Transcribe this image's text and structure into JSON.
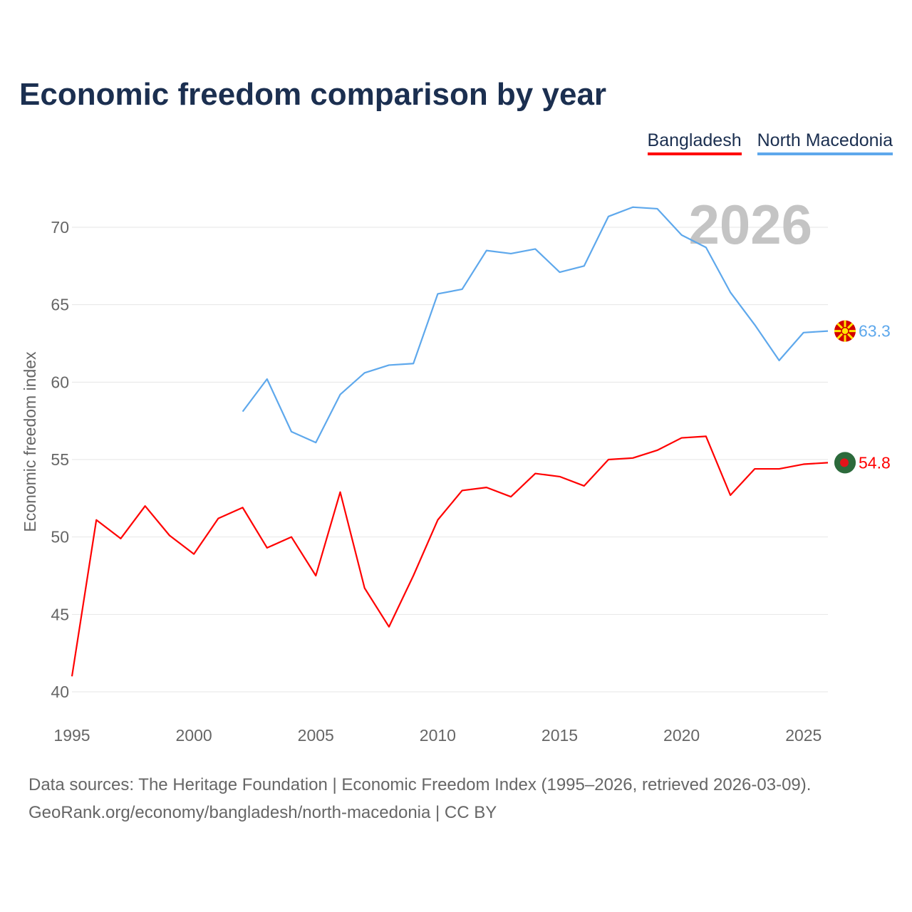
{
  "chart_data": {
    "type": "line",
    "title": "Economic freedom comparison by year",
    "xlabel": "",
    "ylabel": "Economic freedom index",
    "xlim": [
      1995,
      2026
    ],
    "ylim": [
      40,
      72
    ],
    "yticks": [
      40,
      45,
      50,
      55,
      60,
      65,
      70
    ],
    "xticks": [
      1995,
      2000,
      2005,
      2010,
      2015,
      2020,
      2025
    ],
    "grid": true,
    "legend_position": "top-right",
    "watermark_year": "2026",
    "series": [
      {
        "name": "Bangladesh",
        "color": "#ff0000",
        "end_label": "54.8",
        "x": [
          1995,
          1996,
          1997,
          1998,
          1999,
          2000,
          2001,
          2002,
          2003,
          2004,
          2005,
          2006,
          2007,
          2008,
          2009,
          2010,
          2011,
          2012,
          2013,
          2014,
          2015,
          2016,
          2017,
          2018,
          2019,
          2020,
          2021,
          2022,
          2023,
          2024,
          2025,
          2026
        ],
        "values": [
          41.0,
          51.1,
          49.9,
          52.0,
          50.1,
          48.9,
          51.2,
          51.9,
          49.3,
          50.0,
          47.5,
          52.9,
          46.7,
          44.2,
          47.5,
          51.1,
          53.0,
          53.2,
          52.6,
          54.1,
          53.9,
          53.3,
          55.0,
          55.1,
          55.6,
          56.4,
          56.5,
          52.7,
          54.4,
          54.4,
          54.7,
          54.8
        ]
      },
      {
        "name": "North Macedonia",
        "color": "#5ea8ec",
        "end_label": "63.3",
        "x": [
          2002,
          2003,
          2004,
          2005,
          2006,
          2007,
          2008,
          2009,
          2010,
          2011,
          2012,
          2013,
          2014,
          2015,
          2016,
          2017,
          2018,
          2019,
          2020,
          2021,
          2022,
          2023,
          2024,
          2025,
          2026
        ],
        "values": [
          58.1,
          60.2,
          56.8,
          56.1,
          59.2,
          60.6,
          61.1,
          61.2,
          65.7,
          66.0,
          68.5,
          68.3,
          68.6,
          67.1,
          67.5,
          70.7,
          71.3,
          71.2,
          69.5,
          68.7,
          65.8,
          63.7,
          61.4,
          63.2,
          63.3
        ]
      }
    ]
  },
  "footer": {
    "line1": "Data sources: The Heritage Foundation | Economic Freedom Index (1995–2026, retrieved 2026-03-09).",
    "line2": "GeoRank.org/economy/bangladesh/north-macedonia | CC BY"
  }
}
